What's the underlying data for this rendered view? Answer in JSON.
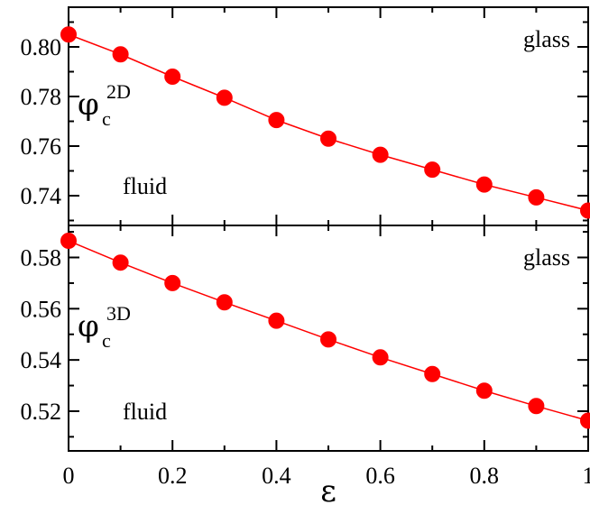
{
  "chart_data": [
    {
      "type": "line",
      "panel": "top",
      "ylabel": {
        "main": "φ",
        "sub": "c",
        "sup": "2D"
      },
      "ylim": [
        0.728,
        0.816
      ],
      "yticks": [
        0.74,
        0.76,
        0.78,
        0.8
      ],
      "ytick_labels": [
        "0.74",
        "0.76",
        "0.78",
        "0.80"
      ],
      "xlim": [
        0,
        1
      ],
      "xticks": [
        0,
        0.2,
        0.4,
        0.6,
        0.8,
        1
      ],
      "annotations": {
        "upper": "glass",
        "lower": "fluid"
      },
      "grid": false,
      "series": [
        {
          "x": [
            0,
            0.1,
            0.2,
            0.3,
            0.4,
            0.5,
            0.6,
            0.7,
            0.8,
            0.9,
            1.0
          ],
          "values": [
            0.805,
            0.797,
            0.788,
            0.7795,
            0.7705,
            0.763,
            0.7565,
            0.7505,
            0.7445,
            0.7393,
            0.734
          ],
          "color": "#ff0000"
        }
      ]
    },
    {
      "type": "line",
      "panel": "bottom",
      "ylabel": {
        "main": "φ",
        "sub": "c",
        "sup": "3D"
      },
      "ylim": [
        0.5045,
        0.5925
      ],
      "yticks": [
        0.52,
        0.54,
        0.56,
        0.58
      ],
      "ytick_labels": [
        "0.52",
        "0.54",
        "0.56",
        "0.58"
      ],
      "xlim": [
        0,
        1
      ],
      "xticks": [
        0,
        0.2,
        0.4,
        0.6,
        0.8,
        1
      ],
      "xtick_labels": [
        "0",
        "0.2",
        "0.4",
        "0.6",
        "0.8",
        "1"
      ],
      "xlabel": "ε",
      "annotations": {
        "upper": "glass",
        "lower": "fluid"
      },
      "grid": false,
      "series": [
        {
          "x": [
            0,
            0.1,
            0.2,
            0.3,
            0.4,
            0.5,
            0.6,
            0.7,
            0.8,
            0.9,
            1.0
          ],
          "values": [
            0.5865,
            0.578,
            0.57,
            0.5625,
            0.5553,
            0.548,
            0.541,
            0.5345,
            0.528,
            0.522,
            0.5163
          ],
          "color": "#ff0000"
        }
      ]
    }
  ]
}
